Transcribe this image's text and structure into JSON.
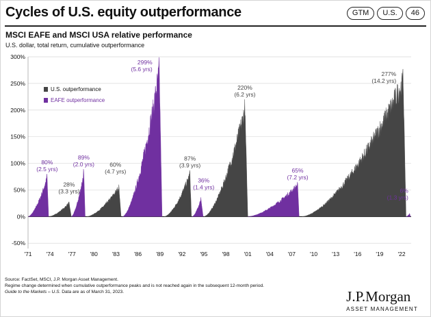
{
  "header": {
    "title": "Cycles of U.S. equity outperformance",
    "tags": [
      "GTM",
      "U.S.",
      "46"
    ]
  },
  "chart_data": {
    "type": "area",
    "title": "MSCI EAFE and MSCI USA relative performance",
    "subtitle": "U.S. dollar, total return, cumulative outperformance",
    "ylim": [
      -60,
      300
    ],
    "yticks": [
      "-50%",
      "0%",
      "50%",
      "100%",
      "150%",
      "200%",
      "250%",
      "300%"
    ],
    "ytick_values": [
      -50,
      0,
      50,
      100,
      150,
      200,
      250,
      300
    ],
    "xlim": [
      1971,
      2023.3
    ],
    "xticks": [
      "'71",
      "'74",
      "'77",
      "'80",
      "'83",
      "'86",
      "'89",
      "'92",
      "'95",
      "'98",
      "'01",
      "'04",
      "'07",
      "'10",
      "'13",
      "'16",
      "'19",
      "'22"
    ],
    "xtick_values": [
      1971,
      1974,
      1977,
      1980,
      1983,
      1986,
      1989,
      1992,
      1995,
      1998,
      2001,
      2004,
      2007,
      2010,
      2013,
      2016,
      2019,
      2022
    ],
    "legend": {
      "placement": "top-left",
      "entries": [
        {
          "name": "U.S. outperformance",
          "color": "#454545"
        },
        {
          "name": "EAFE outperformance",
          "color": "#7030a0"
        }
      ]
    },
    "cycles": [
      {
        "series": "EAFE",
        "start": 1971.0,
        "end": 1973.8,
        "peak": 80,
        "peak_x": 1973.6,
        "label": "80%",
        "sub": "(2.5 yrs)"
      },
      {
        "series": "U.S.",
        "start": 1973.8,
        "end": 1976.9,
        "peak": 28,
        "peak_x": 1976.6,
        "label": "28%",
        "sub": "(3.3 yrs)"
      },
      {
        "series": "EAFE",
        "start": 1976.9,
        "end": 1978.8,
        "peak": 89,
        "peak_x": 1978.6,
        "label": "89%",
        "sub": "(2.0 yrs)"
      },
      {
        "series": "U.S.",
        "start": 1979.0,
        "end": 1983.7,
        "peak": 60,
        "peak_x": 1983.4,
        "label": "60%",
        "sub": "(4.7 yrs)"
      },
      {
        "series": "EAFE",
        "start": 1983.9,
        "end": 1989.3,
        "peak": 299,
        "peak_x": 1988.9,
        "label": "299%",
        "sub": "(5.6 yrs)"
      },
      {
        "series": "U.S.",
        "start": 1989.6,
        "end": 1993.3,
        "peak": 87,
        "peak_x": 1993.1,
        "label": "87%",
        "sub": "(3.9 yrs)"
      },
      {
        "series": "EAFE",
        "start": 1993.4,
        "end": 1994.9,
        "peak": 36,
        "peak_x": 1994.6,
        "label": "36%",
        "sub": "(1.4 yrs)"
      },
      {
        "series": "U.S.",
        "start": 1995.0,
        "end": 2001.0,
        "peak": 220,
        "peak_x": 2000.6,
        "label": "220%",
        "sub": "(6.2 yrs)"
      },
      {
        "series": "EAFE",
        "start": 2001.0,
        "end": 2008.0,
        "peak": 65,
        "peak_x": 2007.8,
        "label": "65%",
        "sub": "(7.2 yrs)"
      },
      {
        "series": "U.S.",
        "start": 2008.4,
        "end": 2022.6,
        "peak": 277,
        "peak_x": 2022.2,
        "label": "277%",
        "sub": "(14.2 yrs)"
      },
      {
        "series": "EAFE",
        "start": 2022.6,
        "end": 2023.2,
        "peak": 6,
        "peak_x": 2023.1,
        "label": "6%",
        "sub": "(1.3 yrs)"
      }
    ]
  },
  "footer": {
    "line1": "Source: FactSet, MSCI, J.P. Morgan Asset Management.",
    "line2": "Regime change determined when cumulative outperformance peaks and is not reached again in the subsequent 12-month period.",
    "line3_italic": "Guide to the Markets – U.S.",
    "line3_rest": " Data are as of March 31, 2023."
  },
  "brand": {
    "name": "J.P.Morgan",
    "division": "ASSET MANAGEMENT"
  },
  "colors": {
    "us": "#454545",
    "eafe": "#7030a0",
    "grid": "#d9d9d9",
    "axis": "#000000"
  }
}
